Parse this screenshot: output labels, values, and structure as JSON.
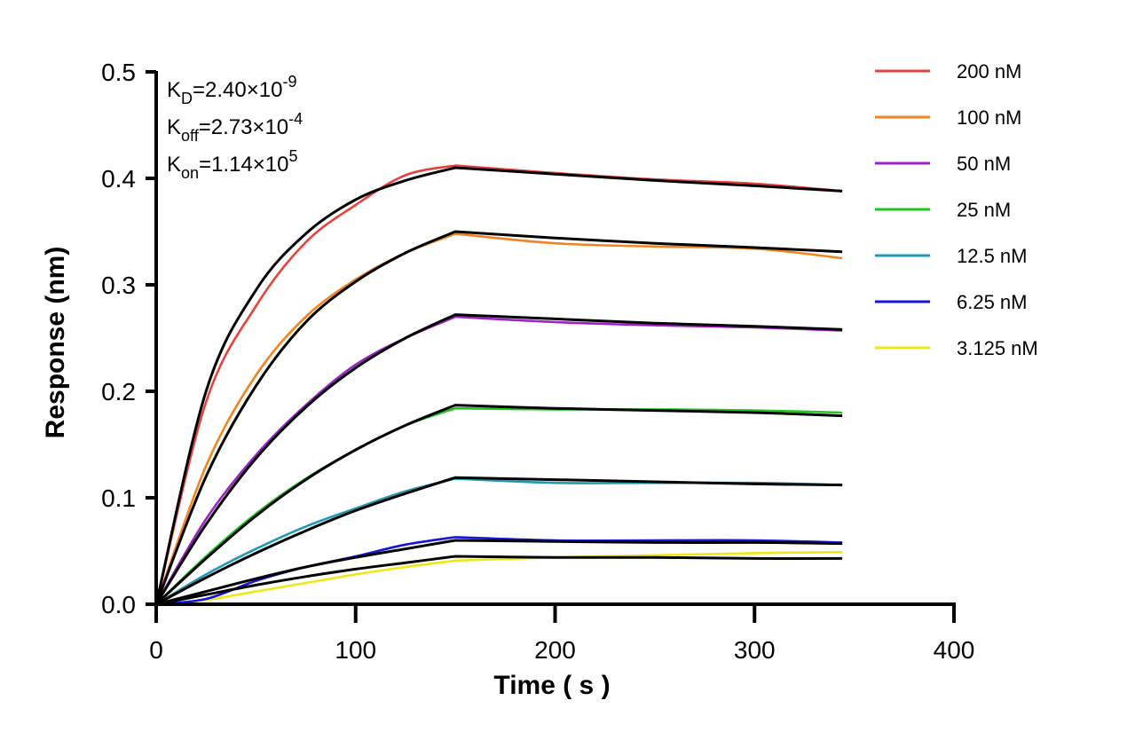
{
  "chart_data": {
    "type": "line",
    "title": "",
    "xlabel": "Time ( s )",
    "ylabel": "Response (nm)",
    "xlim": [
      0,
      400
    ],
    "ylim": [
      0,
      0.5
    ],
    "xticks": [
      0,
      100,
      200,
      300,
      400
    ],
    "yticks": [
      0.0,
      0.1,
      0.2,
      0.3,
      0.4,
      0.5
    ],
    "xtick_labels": [
      "0",
      "100",
      "200",
      "300",
      "400"
    ],
    "ytick_labels": [
      "0.0",
      "0.1",
      "0.2",
      "0.3",
      "0.4",
      "0.5"
    ],
    "grid": false,
    "legend_position": "top-right",
    "association_end_time": 150,
    "end_time": 344,
    "annotations": [
      {
        "symbol": "K",
        "sub": "D",
        "mid": "=2.40×10",
        "sup": "-9"
      },
      {
        "symbol": "K",
        "sub": "off",
        "mid": "=2.73×10",
        "sup": "-4"
      },
      {
        "symbol": "K",
        "sub": "on",
        "mid": "=1.14×10",
        "sup": "5"
      }
    ],
    "fit_color": "#000000",
    "series": [
      {
        "name": "200 nM",
        "color": "#e8413c",
        "x": [
          0,
          25,
          50,
          75,
          100,
          125,
          150,
          200,
          250,
          300,
          344
        ],
        "values": [
          0,
          0.19,
          0.28,
          0.34,
          0.375,
          0.403,
          0.412,
          0.405,
          0.399,
          0.395,
          0.388
        ]
      },
      {
        "name": "100 nM",
        "color": "#f4821f",
        "x": [
          0,
          25,
          50,
          75,
          100,
          125,
          150,
          200,
          250,
          300,
          344
        ],
        "values": [
          0,
          0.13,
          0.215,
          0.27,
          0.305,
          0.33,
          0.348,
          0.339,
          0.336,
          0.334,
          0.325
        ]
      },
      {
        "name": "50 nM",
        "color": "#a020c8",
        "x": [
          0,
          25,
          50,
          75,
          100,
          125,
          150,
          200,
          250,
          300,
          344
        ],
        "values": [
          0,
          0.08,
          0.14,
          0.187,
          0.225,
          0.25,
          0.27,
          0.265,
          0.262,
          0.26,
          0.257
        ]
      },
      {
        "name": "25 nM",
        "color": "#1ec81e",
        "x": [
          0,
          25,
          50,
          75,
          100,
          125,
          150,
          200,
          250,
          300,
          344
        ],
        "values": [
          0,
          0.045,
          0.085,
          0.118,
          0.145,
          0.168,
          0.184,
          0.183,
          0.183,
          0.182,
          0.18
        ]
      },
      {
        "name": "12.5 nM",
        "color": "#1e9bb4",
        "x": [
          0,
          25,
          50,
          75,
          100,
          125,
          150,
          200,
          250,
          300,
          344
        ],
        "values": [
          0,
          0.028,
          0.052,
          0.073,
          0.09,
          0.106,
          0.118,
          0.114,
          0.114,
          0.114,
          0.112
        ]
      },
      {
        "name": "6.25 nM",
        "color": "#1414dc",
        "x": [
          0,
          25,
          50,
          75,
          100,
          125,
          150,
          200,
          250,
          300,
          344
        ],
        "values": [
          0,
          0.005,
          0.022,
          0.035,
          0.045,
          0.056,
          0.063,
          0.06,
          0.06,
          0.06,
          0.058
        ]
      },
      {
        "name": "3.125 nM",
        "color": "#f0e614",
        "x": [
          0,
          25,
          50,
          75,
          100,
          125,
          150,
          200,
          250,
          300,
          344
        ],
        "values": [
          0,
          0.004,
          0.012,
          0.02,
          0.028,
          0.035,
          0.041,
          0.044,
          0.046,
          0.048,
          0.049
        ]
      }
    ],
    "fits": [
      {
        "series": "200 nM",
        "x": [
          0,
          25,
          50,
          75,
          100,
          125,
          150,
          200,
          250,
          300,
          344
        ],
        "values": [
          0,
          0.2,
          0.295,
          0.348,
          0.38,
          0.398,
          0.41,
          0.404,
          0.398,
          0.393,
          0.388
        ]
      },
      {
        "series": "100 nM",
        "x": [
          0,
          25,
          50,
          75,
          100,
          125,
          150,
          200,
          250,
          300,
          344
        ],
        "values": [
          0,
          0.12,
          0.205,
          0.265,
          0.303,
          0.33,
          0.35,
          0.344,
          0.339,
          0.335,
          0.331
        ]
      },
      {
        "series": "50 nM",
        "x": [
          0,
          25,
          50,
          75,
          100,
          125,
          150,
          200,
          250,
          300,
          344
        ],
        "values": [
          0,
          0.075,
          0.137,
          0.185,
          0.222,
          0.25,
          0.272,
          0.268,
          0.264,
          0.261,
          0.258
        ]
      },
      {
        "series": "25 nM",
        "x": [
          0,
          25,
          50,
          75,
          100,
          125,
          150,
          200,
          250,
          300,
          344
        ],
        "values": [
          0,
          0.043,
          0.083,
          0.117,
          0.145,
          0.168,
          0.187,
          0.184,
          0.182,
          0.18,
          0.177
        ]
      },
      {
        "series": "12.5 nM",
        "x": [
          0,
          25,
          50,
          75,
          100,
          125,
          150,
          200,
          250,
          300,
          344
        ],
        "values": [
          0,
          0.025,
          0.048,
          0.069,
          0.088,
          0.104,
          0.119,
          0.117,
          0.115,
          0.113,
          0.112
        ]
      },
      {
        "series": "6.25 nM",
        "x": [
          0,
          25,
          50,
          75,
          100,
          125,
          150,
          200,
          250,
          300,
          344
        ],
        "values": [
          0,
          0.012,
          0.024,
          0.035,
          0.044,
          0.052,
          0.06,
          0.059,
          0.058,
          0.058,
          0.057
        ]
      },
      {
        "series": "3.125 nM",
        "x": [
          0,
          25,
          50,
          75,
          100,
          125,
          150,
          200,
          250,
          300,
          344
        ],
        "values": [
          0,
          0.009,
          0.018,
          0.026,
          0.033,
          0.039,
          0.045,
          0.044,
          0.044,
          0.043,
          0.043
        ]
      }
    ]
  }
}
